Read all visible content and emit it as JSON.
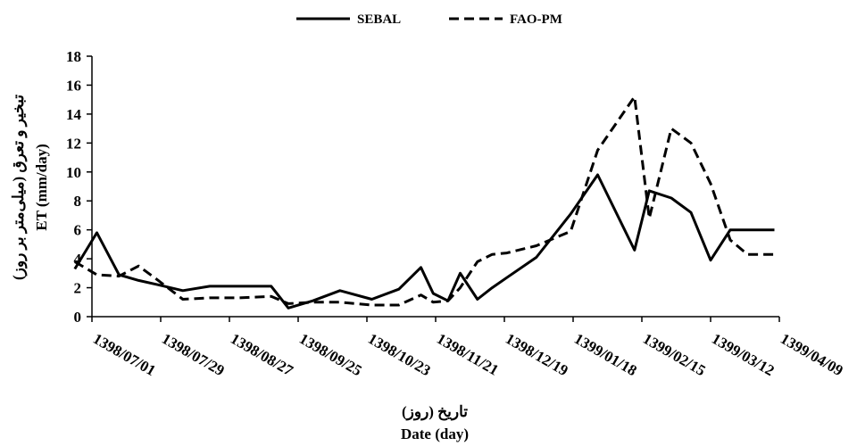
{
  "chart_data": {
    "type": "line",
    "title": "",
    "xlabel_fa": "تاریخ (روز)",
    "xlabel_en": "Date (day)",
    "ylabel_fa": "تبخیر و تعرق (میلی‌متر بر روز)",
    "ylabel_en": "ET (mm/day)",
    "ylim": [
      0,
      18
    ],
    "yticks": [
      0,
      2,
      4,
      6,
      8,
      10,
      12,
      14,
      16,
      18
    ],
    "grid": false,
    "legend_position": "top-center",
    "x_tick_labels": [
      "1398/07/01",
      "1398/07/29",
      "1398/08/27",
      "1398/09/25",
      "1398/10/23",
      "1398/11/21",
      "1398/12/19",
      "1399/01/18",
      "1399/02/15",
      "1399/03/12",
      "1399/04/09"
    ],
    "x": [
      "1398/06/25",
      "1398/07/03",
      "1398/07/12",
      "1398/07/20",
      "1398/07/28",
      "1398/08/08",
      "1398/08/19",
      "1398/09/01",
      "1398/09/14",
      "1398/09/21",
      "1398/10/01",
      "1398/10/12",
      "1398/10/25",
      "1398/11/06",
      "1398/11/15",
      "1398/11/20",
      "1398/11/26",
      "1398/12/01",
      "1398/12/08",
      "1398/12/14",
      "1398/12/20",
      "1399/01/03",
      "1399/01/17",
      "1399/01/28",
      "1399/02/12",
      "1399/02/18",
      "1399/02/27",
      "1399/03/04",
      "1399/03/12",
      "1399/03/20",
      "1399/03/27",
      "1399/04/07"
    ],
    "series": [
      {
        "name": "SEBAL",
        "style": "solid",
        "color": "#000000",
        "values": [
          3.3,
          5.8,
          2.9,
          2.5,
          2.2,
          1.8,
          2.1,
          2.1,
          2.1,
          0.6,
          1.1,
          1.8,
          1.2,
          1.9,
          3.4,
          1.6,
          1.1,
          3.0,
          1.2,
          2.0,
          2.7,
          4.1,
          7.1,
          9.8,
          4.6,
          8.7,
          8.2,
          7.2,
          3.9,
          6.0,
          6.0,
          6.0
        ]
      },
      {
        "name": "FAO-PM",
        "style": "dashed",
        "color": "#000000",
        "values": [
          3.8,
          2.9,
          2.8,
          3.5,
          2.5,
          1.2,
          1.3,
          1.3,
          1.4,
          0.9,
          1.0,
          1.0,
          0.8,
          0.8,
          1.5,
          1.0,
          1.1,
          2.0,
          3.8,
          4.3,
          4.4,
          4.9,
          5.9,
          11.5,
          15.2,
          6.8,
          13.0,
          12.0,
          9.2,
          5.3,
          4.3,
          4.3
        ]
      }
    ]
  }
}
